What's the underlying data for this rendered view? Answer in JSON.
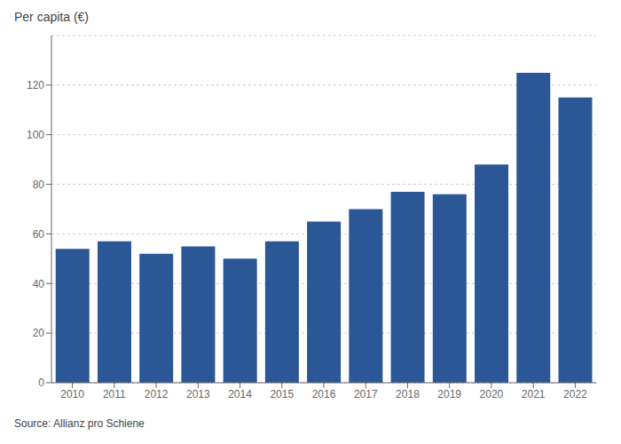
{
  "chart_data": {
    "type": "bar",
    "ylabel": "Per capita (€)",
    "annotation": "Source: Allianz pro Schiene",
    "categories": [
      "2010",
      "2011",
      "2012",
      "2013",
      "2014",
      "2015",
      "2016",
      "2017",
      "2018",
      "2019",
      "2020",
      "2021",
      "2022"
    ],
    "values": [
      54,
      57,
      52,
      55,
      50,
      57,
      65,
      70,
      77,
      76,
      88,
      125,
      115
    ],
    "color": "#2b5797",
    "ylim": [
      0,
      140
    ],
    "yticks": [
      0,
      20,
      40,
      60,
      80,
      100,
      120
    ],
    "grid": true
  }
}
